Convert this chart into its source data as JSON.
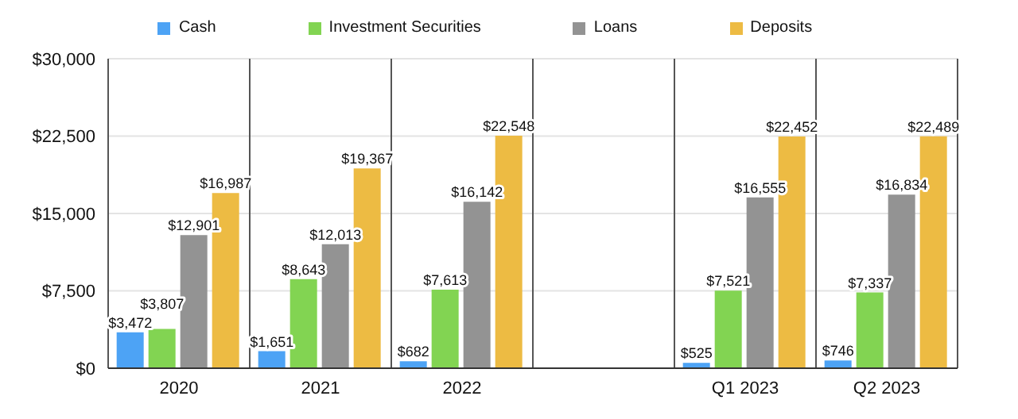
{
  "chart_data": {
    "type": "bar",
    "categories": [
      "2020",
      "2021",
      "2022",
      null,
      "Q1 2023",
      "Q2 2023"
    ],
    "series": [
      {
        "name": "Cash",
        "color": "#4da3f5",
        "values": [
          3472,
          1651,
          682,
          null,
          525,
          746
        ],
        "value_labels": [
          "$3,472",
          "$1,651",
          "$682",
          null,
          "$525",
          "$746"
        ]
      },
      {
        "name": "Investment Securities",
        "color": "#82d452",
        "values": [
          3807,
          8643,
          7613,
          null,
          7521,
          7337
        ],
        "value_labels": [
          "$3,807",
          "$8,643",
          "$7,613",
          null,
          "$7,521",
          "$7,337"
        ]
      },
      {
        "name": "Loans",
        "color": "#939393",
        "values": [
          12901,
          12013,
          16142,
          null,
          16555,
          16834
        ],
        "value_labels": [
          "$12,901",
          "$12,013",
          "$16,142",
          null,
          "$16,555",
          "$16,834"
        ]
      },
      {
        "name": "Deposits",
        "color": "#edbb43",
        "values": [
          16987,
          19367,
          22548,
          null,
          22452,
          22489
        ],
        "value_labels": [
          "$16,987",
          "$19,367",
          "$22,548",
          null,
          "$22,452",
          "$22,489"
        ]
      }
    ],
    "ylim": [
      0,
      30000
    ],
    "yticks": [
      {
        "value": 0,
        "label": "$0"
      },
      {
        "value": 7500,
        "label": "$7,500"
      },
      {
        "value": 15000,
        "label": "$15,000"
      },
      {
        "value": 22500,
        "label": "$22,500"
      },
      {
        "value": 30000,
        "label": "$30,000"
      }
    ],
    "grid": true,
    "legend": "top"
  }
}
